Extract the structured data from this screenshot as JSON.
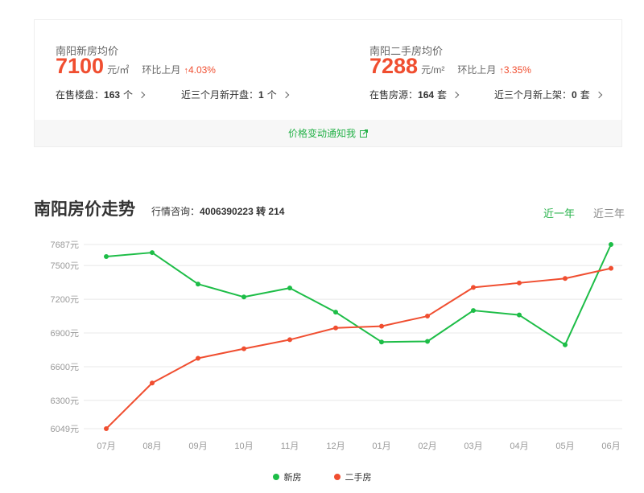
{
  "summary": {
    "new_house": {
      "title": "南阳新房均价",
      "price": "7100",
      "unit": "元/㎡",
      "change_label": "环比上月",
      "change_arrow": "↑",
      "change_value": "4.03%",
      "stat1_label": "在售楼盘：",
      "stat1_value": "163",
      "stat1_unit": "个",
      "stat2_label": "近三个月新开盘：",
      "stat2_value": "1",
      "stat2_unit": "个"
    },
    "used_house": {
      "title": "南阳二手房均价",
      "price": "7288",
      "unit": "元/m²",
      "change_label": "环比上月",
      "change_arrow": "↑",
      "change_value": "3.35%",
      "stat1_label": "在售房源：",
      "stat1_value": "164",
      "stat1_unit": "套",
      "stat2_label": "近三个月新上架：",
      "stat2_value": "0",
      "stat2_unit": "套"
    },
    "notify_label": "价格变动通知我"
  },
  "trend": {
    "title": "南阳房价走势",
    "hotline_label": "行情咨询：",
    "hotline_value": "4006390223 转 214",
    "tabs": {
      "year": "近一年",
      "three_year": "近三年"
    }
  },
  "colors": {
    "new_series": "#1dbd47",
    "used_series": "#f04e30",
    "accent_green": "#27b24a",
    "grid": "#e8e8e8",
    "axis_text": "#999999"
  },
  "chart_data": {
    "type": "line",
    "categories": [
      "07月",
      "08月",
      "09月",
      "10月",
      "11月",
      "12月",
      "01月",
      "02月",
      "03月",
      "04月",
      "05月",
      "06月"
    ],
    "y_ticks": [
      6049,
      6300,
      6600,
      6900,
      7200,
      7500,
      7687
    ],
    "y_tick_labels": [
      "6049元",
      "6300元",
      "6600元",
      "6900元",
      "7200元",
      "7500元",
      "7687元"
    ],
    "ylim": [
      6049,
      7687
    ],
    "grid": true,
    "legend_position": "bottom-center",
    "series": [
      {
        "name": "新房",
        "color": "#1dbd47",
        "values": [
          7580,
          7615,
          7335,
          7220,
          7300,
          7085,
          6820,
          6825,
          7100,
          7060,
          6795,
          7687
        ]
      },
      {
        "name": "二手房",
        "color": "#f04e30",
        "values": [
          6049,
          6455,
          6675,
          6760,
          6840,
          6945,
          6960,
          7050,
          7305,
          7345,
          7385,
          7475
        ]
      }
    ]
  }
}
